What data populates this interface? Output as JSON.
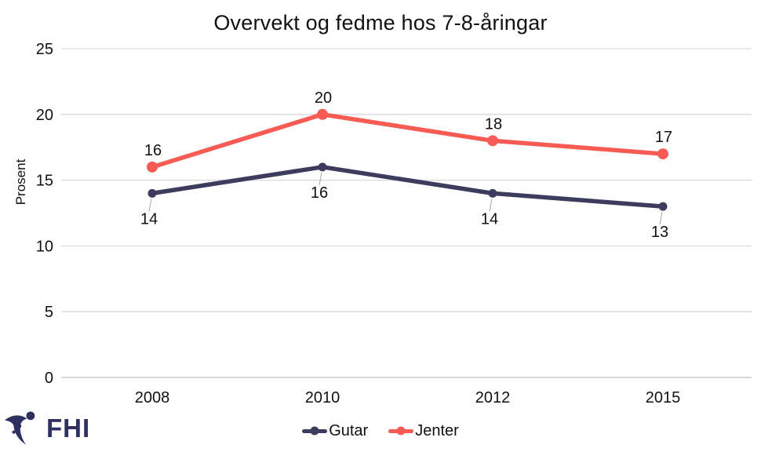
{
  "chart_data": {
    "type": "line",
    "title": "Overvekt og fedme hos 7-8-åringar",
    "xlabel": "",
    "ylabel": "Prosent",
    "categories": [
      "2008",
      "2010",
      "2012",
      "2015"
    ],
    "series": [
      {
        "name": "Gutar",
        "values": [
          14,
          16,
          14,
          13
        ],
        "color": "#3D3C5F",
        "marker": "circle",
        "label_placement": "below"
      },
      {
        "name": "Jenter",
        "values": [
          16,
          20,
          18,
          17
        ],
        "color": "#F75B53",
        "marker": "circle",
        "label_placement": "above"
      }
    ],
    "ylim": [
      0,
      25
    ],
    "yticks": [
      0,
      5,
      10,
      15,
      20,
      25
    ],
    "grid": "horizontal",
    "legend_position": "bottom",
    "data_labels": true
  },
  "branding": {
    "logo_text": "FHI",
    "logo_color": "#2D3061"
  },
  "colors": {
    "gridline": "#D9D9D9",
    "axis_line": "#BFBFBF",
    "leader_line": "#A6A6A6",
    "text": "#111111",
    "background": "#FFFFFF"
  }
}
